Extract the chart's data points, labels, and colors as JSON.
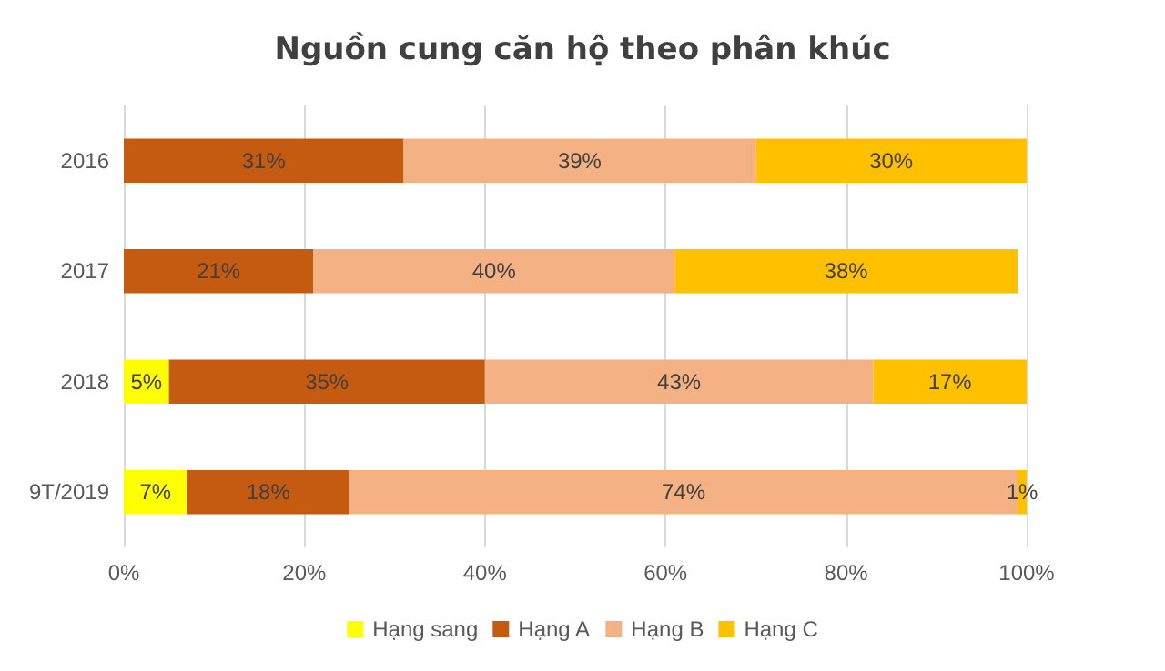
{
  "chart_data": {
    "type": "bar",
    "title": "Nguồn cung căn hộ theo phân khúc",
    "orientation": "horizontal",
    "stacked": true,
    "categories": [
      "2016",
      "2017",
      "2018",
      "9T/2019"
    ],
    "series": [
      {
        "name": "Hạng sang",
        "color": "#ffff00",
        "values": [
          0,
          0,
          5,
          7
        ],
        "value_labels": [
          null,
          null,
          "5%",
          "7%"
        ]
      },
      {
        "name": "Hạng A",
        "color": "#c55a11",
        "values": [
          31,
          21,
          35,
          18
        ],
        "value_labels": [
          "31%",
          "21%",
          "35%",
          "18%"
        ]
      },
      {
        "name": "Hạng B",
        "color": "#f4b183",
        "values": [
          39,
          40,
          43,
          74
        ],
        "value_labels": [
          "39%",
          "40%",
          "43%",
          "74%"
        ]
      },
      {
        "name": "Hạng C",
        "color": "#ffc000",
        "values": [
          30,
          38,
          17,
          1
        ],
        "value_labels": [
          "30%",
          "38%",
          "17%",
          "1%"
        ]
      }
    ],
    "xlim": [
      0,
      100
    ],
    "xticks": [
      {
        "value": 0,
        "label": "0%"
      },
      {
        "value": 20,
        "label": "20%"
      },
      {
        "value": 40,
        "label": "40%"
      },
      {
        "value": 60,
        "label": "60%"
      },
      {
        "value": 80,
        "label": "80%"
      },
      {
        "value": 100,
        "label": "100%"
      }
    ],
    "grid": "x",
    "legend": "bottom"
  }
}
